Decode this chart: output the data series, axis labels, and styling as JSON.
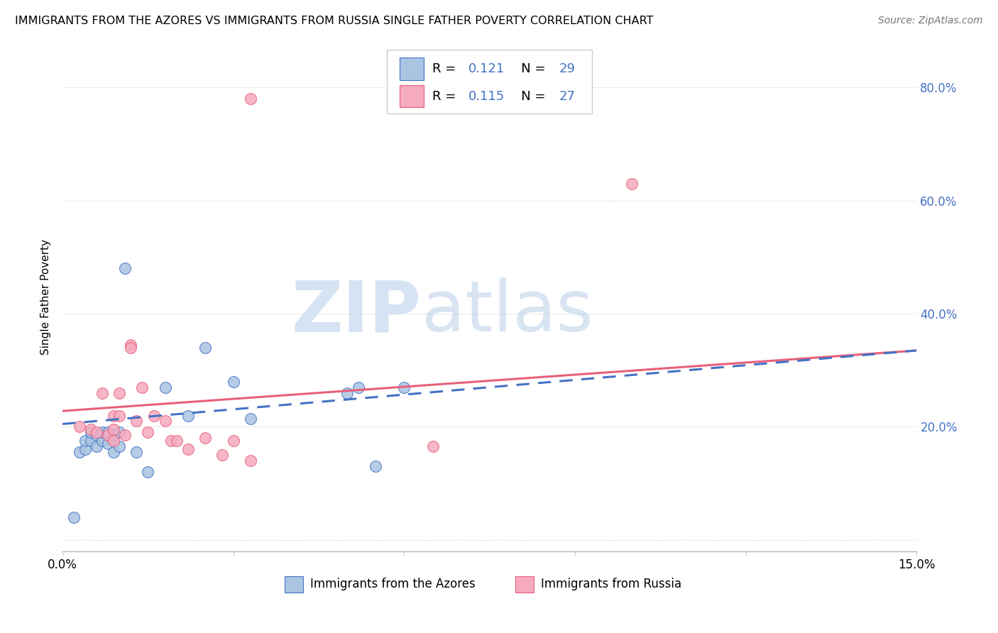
{
  "title": "IMMIGRANTS FROM THE AZORES VS IMMIGRANTS FROM RUSSIA SINGLE FATHER POVERTY CORRELATION CHART",
  "source": "Source: ZipAtlas.com",
  "ylabel": "Single Father Poverty",
  "yticks": [
    0.0,
    0.2,
    0.4,
    0.6,
    0.8
  ],
  "ytick_labels": [
    "",
    "20.0%",
    "40.0%",
    "60.0%",
    "80.0%"
  ],
  "xlim": [
    0.0,
    0.15
  ],
  "ylim": [
    -0.02,
    0.88
  ],
  "legend_label1": "Immigrants from the Azores",
  "legend_label2": "Immigrants from Russia",
  "R1": "0.121",
  "N1": "29",
  "R2": "0.115",
  "N2": "27",
  "color_azores": "#aac4e2",
  "color_russia": "#f5aabf",
  "color_azores_line": "#4472c4",
  "color_russia_line": "#e8607a",
  "azores_x": [
    0.002,
    0.003,
    0.004,
    0.004,
    0.005,
    0.005,
    0.006,
    0.006,
    0.007,
    0.007,
    0.008,
    0.008,
    0.008,
    0.009,
    0.009,
    0.01,
    0.01,
    0.011,
    0.013,
    0.015,
    0.018,
    0.022,
    0.025,
    0.03,
    0.033,
    0.05,
    0.052,
    0.055,
    0.06
  ],
  "azores_y": [
    0.04,
    0.155,
    0.16,
    0.175,
    0.175,
    0.19,
    0.165,
    0.185,
    0.175,
    0.19,
    0.185,
    0.17,
    0.19,
    0.155,
    0.185,
    0.165,
    0.19,
    0.48,
    0.155,
    0.12,
    0.27,
    0.22,
    0.34,
    0.28,
    0.215,
    0.26,
    0.27,
    0.13,
    0.27
  ],
  "russia_x": [
    0.003,
    0.005,
    0.006,
    0.007,
    0.008,
    0.009,
    0.009,
    0.009,
    0.01,
    0.01,
    0.011,
    0.012,
    0.012,
    0.013,
    0.014,
    0.015,
    0.016,
    0.018,
    0.019,
    0.02,
    0.022,
    0.025,
    0.028,
    0.03,
    0.033,
    0.065,
    0.1
  ],
  "russia_y": [
    0.2,
    0.195,
    0.19,
    0.26,
    0.185,
    0.175,
    0.195,
    0.22,
    0.22,
    0.26,
    0.185,
    0.345,
    0.34,
    0.21,
    0.27,
    0.19,
    0.22,
    0.21,
    0.175,
    0.175,
    0.16,
    0.18,
    0.15,
    0.175,
    0.14,
    0.165,
    0.63
  ],
  "russia_outlier_x": [
    0.033
  ],
  "russia_outlier_y": [
    0.78
  ],
  "azores_line_x": [
    0.0,
    0.15
  ],
  "azores_line_y": [
    0.205,
    0.335
  ],
  "russia_line_x": [
    0.0,
    0.15
  ],
  "russia_line_y": [
    0.228,
    0.335
  ]
}
